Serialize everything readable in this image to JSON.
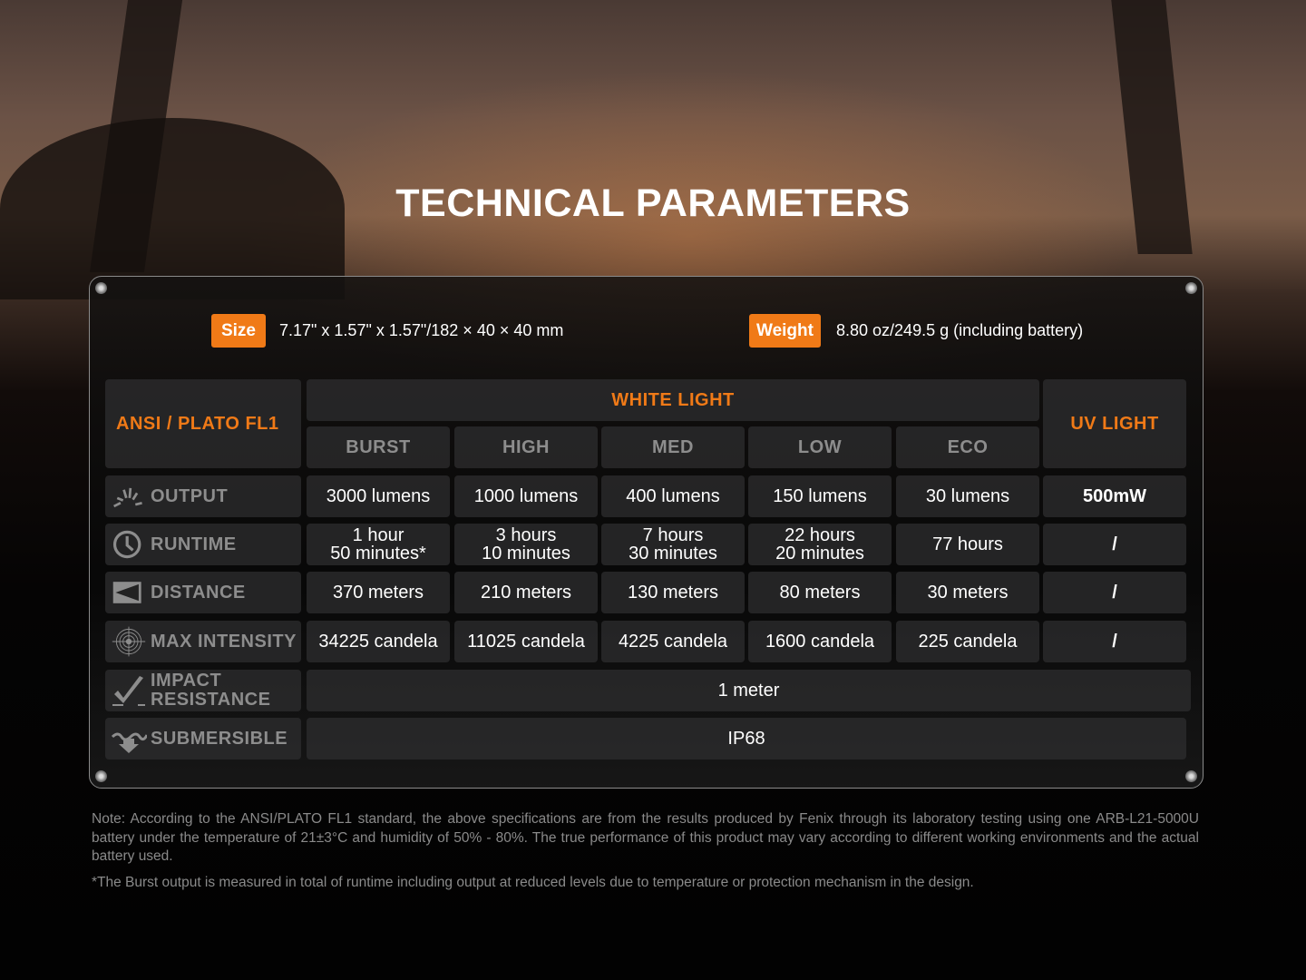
{
  "title": "TECHNICAL PARAMETERS",
  "size": {
    "label": "Size",
    "value": "7.17\" x 1.57\" x 1.57\"/182 × 40 × 40 mm"
  },
  "weight": {
    "label": "Weight",
    "value": "8.80 oz/249.5 g (including battery)"
  },
  "accent": "#f07a17",
  "table": {
    "standard": "ANSI / PLATO FL1",
    "white_light": "WHITE LIGHT",
    "uv_light": "UV LIGHT",
    "modes": [
      "BURST",
      "HIGH",
      "MED",
      "LOW",
      "ECO"
    ],
    "rows": [
      {
        "label": "OUTPUT",
        "icon": "burst-icon",
        "values": [
          "3000 lumens",
          "1000 lumens",
          "400 lumens",
          "150 lumens",
          "30 lumens"
        ],
        "uv": "500mW"
      },
      {
        "label": "RUNTIME",
        "icon": "clock-icon",
        "values": [
          [
            "1 hour",
            "50 minutes*"
          ],
          [
            "3 hours",
            "10 minutes"
          ],
          [
            "7 hours",
            "30 minutes"
          ],
          [
            "22 hours",
            "20 minutes"
          ],
          [
            "77 hours",
            ""
          ]
        ],
        "uv": "/"
      },
      {
        "label": "DISTANCE",
        "icon": "beam-distance-icon",
        "values": [
          "370 meters",
          "210 meters",
          "130 meters",
          "80 meters",
          "30 meters"
        ],
        "uv": "/"
      },
      {
        "label": "MAX INTENSITY",
        "icon": "target-icon",
        "values": [
          "34225 candela",
          "11025 candela",
          "4225 candela",
          "1600 candela",
          "225 candela"
        ],
        "uv": "/"
      }
    ],
    "impact": {
      "label_1": "IMPACT",
      "label_2": "RESISTANCE",
      "icon": "impact-check-icon",
      "value": "1 meter"
    },
    "submersible": {
      "label": "SUBMERSIBLE",
      "icon": "water-arrow-icon",
      "value": "IP68"
    }
  },
  "notes": {
    "note": "Note: According to the ANSI/PLATO FL1 standard, the above specifications are from the results produced by Fenix through its laboratory testing using one ARB-L21-5000U battery under the temperature of 21±3°C and humidity of 50% - 80%. The true performance of this product may vary according to different working environments and the actual battery used.",
    "footnote": "*The Burst output is measured in total of runtime including output at reduced levels due to temperature or protection mechanism in the design."
  }
}
